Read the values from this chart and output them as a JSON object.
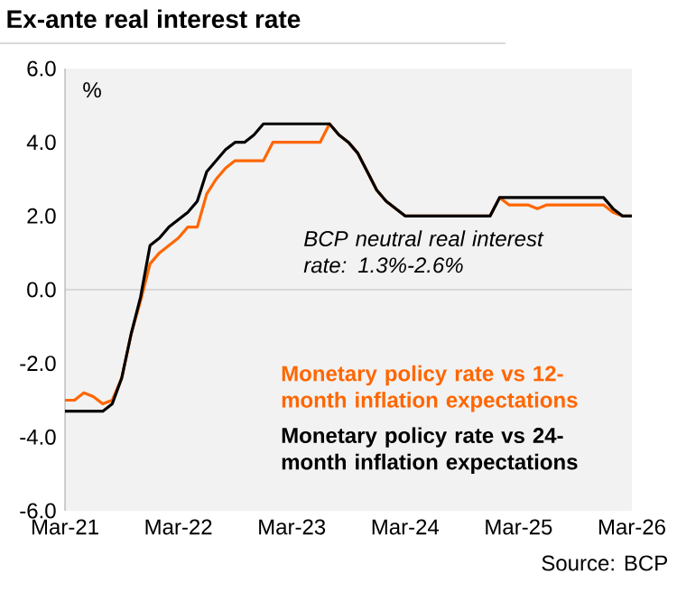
{
  "chart_data": {
    "type": "line",
    "title": "Ex-ante real interest rate",
    "xlim": [
      "2021-03",
      "2026-03"
    ],
    "xticks": [
      {
        "value": "2021-03",
        "label": "Mar-21"
      },
      {
        "value": "2022-03",
        "label": "Mar-22"
      },
      {
        "value": "2023-03",
        "label": "Mar-23"
      },
      {
        "value": "2024-03",
        "label": "Mar-24"
      },
      {
        "value": "2025-03",
        "label": "Mar-25"
      },
      {
        "value": "2026-03",
        "label": "Mar-26"
      }
    ],
    "ylim": [
      -6,
      6
    ],
    "yticks": [
      {
        "value": -6,
        "label": "-6.0"
      },
      {
        "value": -4,
        "label": "-4.0"
      },
      {
        "value": -2,
        "label": "-2.0"
      },
      {
        "value": 0,
        "label": "0.0"
      },
      {
        "value": 2,
        "label": "2.0"
      },
      {
        "value": 4,
        "label": "4.0"
      },
      {
        "value": 6,
        "label": "6.0"
      }
    ],
    "series": [
      {
        "name": "Monetary policy rate vs 12-month inflation expectations",
        "color": "#ff6600",
        "x": [
          "2021-03",
          "2021-04",
          "2021-05",
          "2021-06",
          "2021-07",
          "2021-08",
          "2021-09",
          "2021-10",
          "2021-11",
          "2021-12",
          "2022-01",
          "2022-02",
          "2022-03",
          "2022-04",
          "2022-05",
          "2022-06",
          "2022-07",
          "2022-08",
          "2022-09",
          "2022-12",
          "2023-01",
          "2023-06",
          "2023-07",
          "2023-08",
          "2023-09",
          "2023-10",
          "2023-11",
          "2023-12",
          "2024-01",
          "2024-02",
          "2024-03",
          "2024-12",
          "2025-01",
          "2025-02",
          "2025-04",
          "2025-05",
          "2025-06",
          "2025-12",
          "2026-01",
          "2026-02",
          "2026-03"
        ],
        "values": [
          -3.0,
          -3.0,
          -2.8,
          -2.9,
          -3.1,
          -3.0,
          -2.4,
          -1.2,
          -0.3,
          0.7,
          1.0,
          1.2,
          1.4,
          1.7,
          1.7,
          2.6,
          3.0,
          3.3,
          3.5,
          3.5,
          4.0,
          4.0,
          4.5,
          4.2,
          4.0,
          3.7,
          3.2,
          2.7,
          2.4,
          2.2,
          2.0,
          2.0,
          2.5,
          2.3,
          2.3,
          2.2,
          2.3,
          2.3,
          2.1,
          2.0,
          2.0
        ]
      },
      {
        "name": "Monetary policy rate vs 24-month inflation expectations",
        "color": "#000000",
        "x": [
          "2021-03",
          "2021-07",
          "2021-08",
          "2021-09",
          "2021-10",
          "2021-11",
          "2021-12",
          "2022-01",
          "2022-02",
          "2022-03",
          "2022-04",
          "2022-05",
          "2022-06",
          "2022-07",
          "2022-08",
          "2022-09",
          "2022-10",
          "2022-11",
          "2022-12",
          "2023-07",
          "2023-08",
          "2023-09",
          "2023-10",
          "2023-11",
          "2023-12",
          "2024-01",
          "2024-02",
          "2024-03",
          "2024-12",
          "2025-01",
          "2025-12",
          "2026-01",
          "2026-02",
          "2026-03"
        ],
        "values": [
          -3.3,
          -3.3,
          -3.1,
          -2.4,
          -1.2,
          -0.2,
          1.2,
          1.4,
          1.7,
          1.9,
          2.1,
          2.4,
          3.2,
          3.5,
          3.8,
          4.0,
          4.0,
          4.2,
          4.5,
          4.5,
          4.2,
          4.0,
          3.7,
          3.2,
          2.7,
          2.4,
          2.2,
          2.0,
          2.0,
          2.5,
          2.5,
          2.2,
          2.0,
          2.0
        ]
      }
    ],
    "annotations": [
      "%",
      "BCP neutral real interest rate: 1.3%-2.6%",
      "Source: BCP"
    ],
    "ref_lines": [
      {
        "axis": "y",
        "value": 0,
        "color": "#bfbfbf"
      }
    ],
    "legend": "bottom right",
    "grid": false,
    "marker": "none",
    "line_style": "solid"
  }
}
